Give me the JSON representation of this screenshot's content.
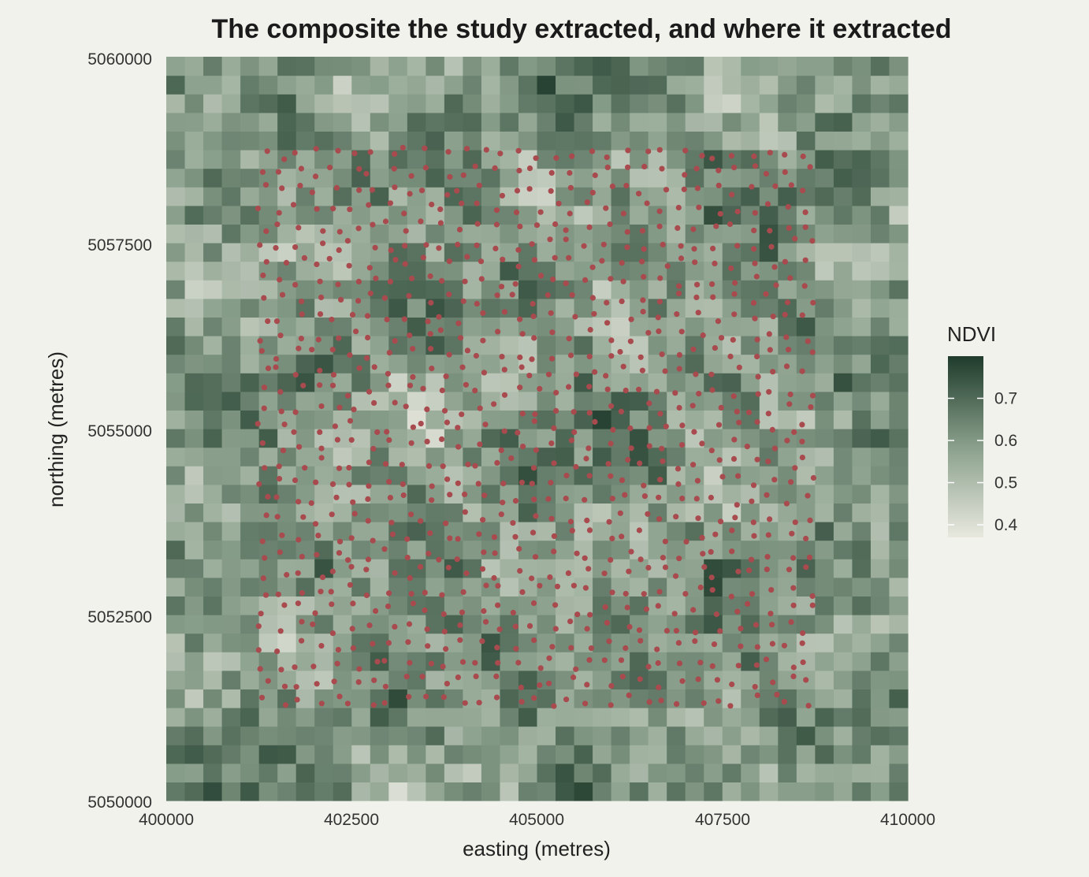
{
  "chart_data": {
    "type": "heatmap",
    "title": "The composite the study extracted, and where it extracted",
    "xlabel": "easting (metres)",
    "ylabel": "northing (metres)",
    "xlim": [
      400000,
      410000
    ],
    "ylim": [
      5050000,
      5060000
    ],
    "x_ticks": [
      "400000",
      "402500",
      "405000",
      "407500",
      "410000"
    ],
    "y_ticks": [
      "5050000",
      "5052500",
      "5055000",
      "5057500",
      "5060000"
    ],
    "grid_cells": [
      40,
      40
    ],
    "cell_size_m": 250,
    "legend": {
      "title": "NDVI",
      "placement": "right",
      "range": [
        0.37,
        0.8
      ],
      "ticks": [
        "0.4",
        "0.5",
        "0.6",
        "0.7"
      ],
      "color_low": "#e8e8df",
      "color_mid": "#8aa08c",
      "color_high": "#1f3b2b"
    },
    "points": {
      "color": "#a84a4e",
      "grid_rows": 31,
      "grid_cols": 31,
      "x_start": 401300,
      "y_start": 5058700,
      "spacing_m": 245,
      "jitter_m": 80,
      "count": 961
    }
  }
}
